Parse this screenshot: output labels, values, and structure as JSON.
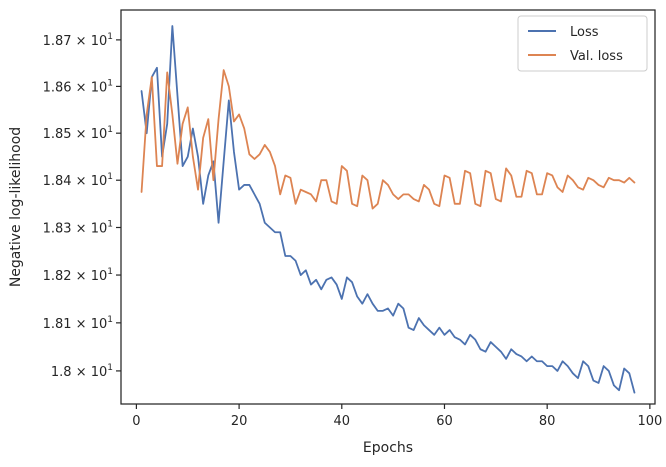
{
  "chart_data": {
    "type": "line",
    "xlabel": "Epochs",
    "ylabel": "Negative log-likelihood",
    "xlim": [
      -3,
      101
    ],
    "ylim": [
      17.9315,
      18.7645
    ],
    "y_scale": "log",
    "grid": false,
    "legend_position": "top-right",
    "x_ticks": [
      0,
      20,
      40,
      60,
      80,
      100
    ],
    "x_tick_labels": [
      "0",
      "20",
      "40",
      "60",
      "80",
      "100"
    ],
    "y_ticks": [
      18.0,
      18.1,
      18.2,
      18.3,
      18.4,
      18.5,
      18.6,
      18.7
    ],
    "y_tick_labels": [
      {
        "mantissa": "1.8",
        "exp": "1"
      },
      {
        "mantissa": "1.81",
        "exp": "1"
      },
      {
        "mantissa": "1.82",
        "exp": "1"
      },
      {
        "mantissa": "1.83",
        "exp": "1"
      },
      {
        "mantissa": "1.84",
        "exp": "1"
      },
      {
        "mantissa": "1.85",
        "exp": "1"
      },
      {
        "mantissa": "1.86",
        "exp": "1"
      },
      {
        "mantissa": "1.87",
        "exp": "1"
      }
    ],
    "series": [
      {
        "name": "Loss",
        "color": "#4c72b0",
        "x": [
          1,
          2,
          3,
          4,
          5,
          6,
          7,
          8,
          9,
          10,
          11,
          12,
          13,
          14,
          15,
          16,
          17,
          18,
          19,
          20,
          21,
          22,
          23,
          24,
          25,
          26,
          27,
          28,
          29,
          30,
          31,
          32,
          33,
          34,
          35,
          36,
          37,
          38,
          39,
          40,
          41,
          42,
          43,
          44,
          45,
          46,
          47,
          48,
          49,
          50,
          51,
          52,
          53,
          54,
          55,
          56,
          57,
          58,
          59,
          60,
          61,
          62,
          63,
          64,
          65,
          66,
          67,
          68,
          69,
          70,
          71,
          72,
          73,
          74,
          75,
          76,
          77,
          78,
          79,
          80,
          81,
          82,
          83,
          84,
          85,
          86,
          87,
          88,
          89,
          90,
          91,
          92,
          93,
          94,
          95,
          96,
          97
        ],
        "y": [
          18.59,
          18.5,
          18.62,
          18.64,
          18.45,
          18.52,
          18.73,
          18.58,
          18.43,
          18.45,
          18.51,
          18.45,
          18.35,
          18.41,
          18.44,
          18.31,
          18.44,
          18.57,
          18.46,
          18.38,
          18.39,
          18.39,
          18.37,
          18.35,
          18.31,
          18.3,
          18.29,
          18.29,
          18.24,
          18.24,
          18.23,
          18.2,
          18.21,
          18.18,
          18.19,
          18.17,
          18.19,
          18.195,
          18.18,
          18.15,
          18.195,
          18.185,
          18.155,
          18.14,
          18.16,
          18.14,
          18.125,
          18.125,
          18.13,
          18.115,
          18.14,
          18.13,
          18.09,
          18.085,
          18.11,
          18.095,
          18.085,
          18.075,
          18.09,
          18.075,
          18.085,
          18.07,
          18.065,
          18.055,
          18.075,
          18.065,
          18.045,
          18.04,
          18.06,
          18.05,
          18.04,
          18.025,
          18.045,
          18.035,
          18.03,
          18.02,
          18.03,
          18.02,
          18.02,
          18.01,
          18.01,
          18.0,
          18.02,
          18.01,
          17.995,
          17.985,
          18.02,
          18.01,
          17.98,
          17.975,
          18.01,
          18.0,
          17.97,
          17.96,
          18.005,
          17.995,
          17.955
        ]
      },
      {
        "name": "Val. loss",
        "color": "#dd8452",
        "x": [
          1,
          2,
          3,
          4,
          5,
          6,
          7,
          8,
          9,
          10,
          11,
          12,
          13,
          14,
          15,
          16,
          17,
          18,
          19,
          20,
          21,
          22,
          23,
          24,
          25,
          26,
          27,
          28,
          29,
          30,
          31,
          32,
          33,
          34,
          35,
          36,
          37,
          38,
          39,
          40,
          41,
          42,
          43,
          44,
          45,
          46,
          47,
          48,
          49,
          50,
          51,
          52,
          53,
          54,
          55,
          56,
          57,
          58,
          59,
          60,
          61,
          62,
          63,
          64,
          65,
          66,
          67,
          68,
          69,
          70,
          71,
          72,
          73,
          74,
          75,
          76,
          77,
          78,
          79,
          80,
          81,
          82,
          83,
          84,
          85,
          86,
          87,
          88,
          89,
          90,
          91,
          92,
          93,
          94,
          95,
          96,
          97
        ],
        "y": [
          18.375,
          18.54,
          18.62,
          18.43,
          18.43,
          18.63,
          18.54,
          18.435,
          18.52,
          18.555,
          18.45,
          18.38,
          18.49,
          18.53,
          18.4,
          18.53,
          18.635,
          18.6,
          18.525,
          18.54,
          18.51,
          18.455,
          18.445,
          18.455,
          18.475,
          18.46,
          18.43,
          18.37,
          18.41,
          18.405,
          18.35,
          18.38,
          18.375,
          18.37,
          18.355,
          18.4,
          18.4,
          18.355,
          18.35,
          18.43,
          18.42,
          18.35,
          18.345,
          18.41,
          18.4,
          18.34,
          18.35,
          18.4,
          18.39,
          18.37,
          18.36,
          18.37,
          18.37,
          18.36,
          18.355,
          18.39,
          18.38,
          18.35,
          18.345,
          18.41,
          18.405,
          18.35,
          18.35,
          18.42,
          18.415,
          18.35,
          18.345,
          18.42,
          18.415,
          18.36,
          18.355,
          18.425,
          18.41,
          18.365,
          18.365,
          18.42,
          18.415,
          18.37,
          18.37,
          18.415,
          18.41,
          18.385,
          18.375,
          18.41,
          18.4,
          18.385,
          18.38,
          18.405,
          18.4,
          18.39,
          18.385,
          18.405,
          18.4,
          18.4,
          18.395,
          18.405,
          18.395
        ]
      }
    ]
  }
}
